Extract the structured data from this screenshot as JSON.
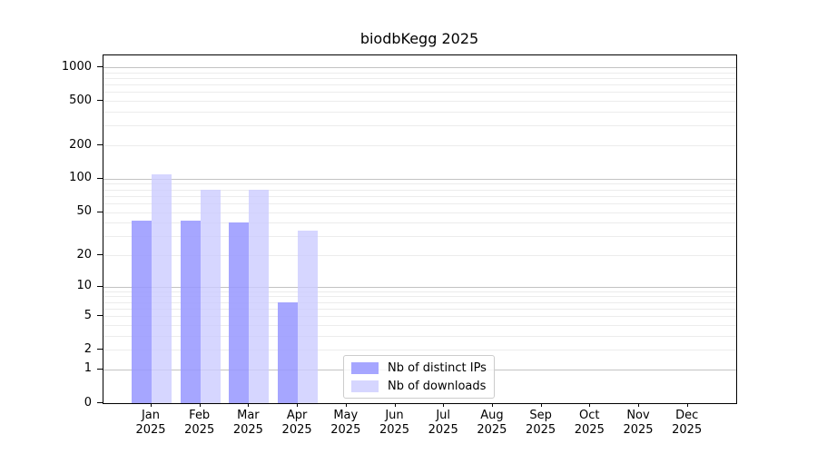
{
  "chart_data": {
    "type": "bar",
    "title": "biodbKegg 2025",
    "year_label": "2025",
    "categories": [
      "Jan",
      "Feb",
      "Mar",
      "Apr",
      "May",
      "Jun",
      "Jul",
      "Aug",
      "Sep",
      "Oct",
      "Nov",
      "Dec"
    ],
    "series": [
      {
        "name": "Nb of distinct IPs",
        "color": "#9999ff",
        "alpha": 0.87,
        "values": [
          42,
          42,
          40,
          7,
          0,
          0,
          0,
          0,
          0,
          0,
          0,
          0
        ]
      },
      {
        "name": "Nb of downloads",
        "color": "#ccccff",
        "alpha": 0.8,
        "values": [
          110,
          80,
          80,
          34,
          0,
          0,
          0,
          0,
          0,
          0,
          0,
          0
        ]
      }
    ],
    "yticks": [
      0,
      1,
      2,
      5,
      10,
      20,
      50,
      100,
      200,
      500,
      1000
    ],
    "scale": "log10(1+x)",
    "ylim": [
      0,
      1276
    ],
    "xlabel": "",
    "ylabel": "",
    "grid": {
      "major_color": "#c3c3c3",
      "minor_color": "#ececec",
      "minor_values_per_decade": [
        2,
        3,
        4,
        5,
        6,
        7,
        8,
        9
      ]
    },
    "legend_position": "lower-center",
    "axis_color": "#000000",
    "background_color": "#ffffff"
  }
}
